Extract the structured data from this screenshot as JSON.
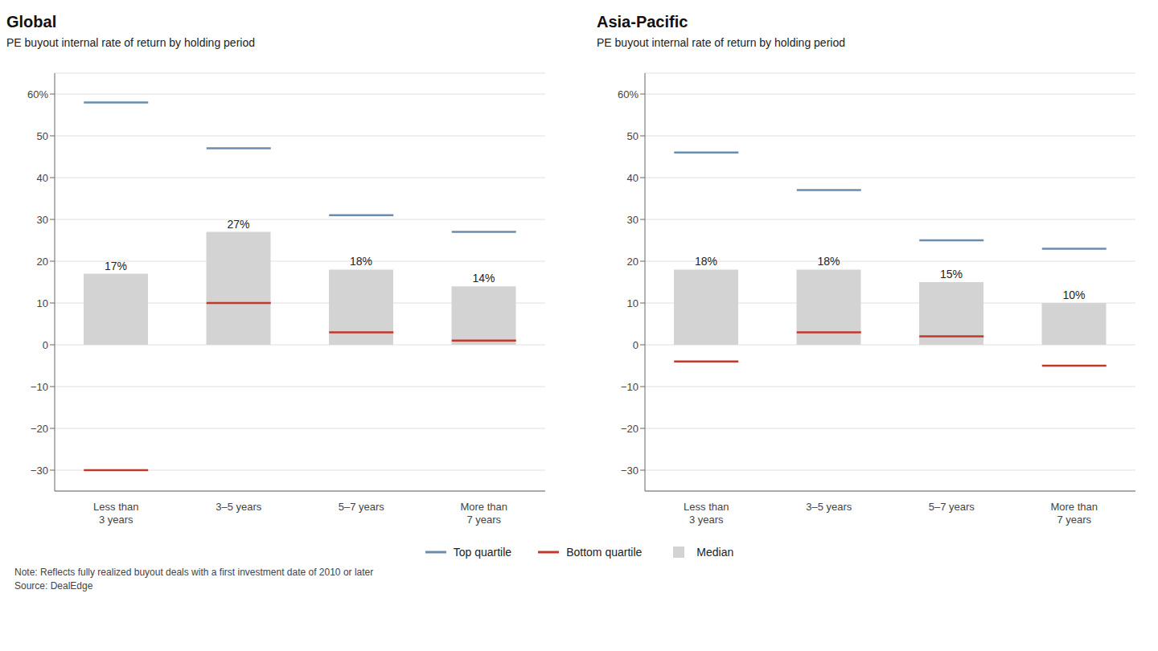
{
  "chart_data": [
    {
      "type": "bar",
      "title": "Global",
      "subtitle": "PE buyout internal rate of return by holding period",
      "categories": [
        "Less than\n3 years",
        "3–5 years",
        "5–7 years",
        "More than\n7 years"
      ],
      "series": [
        {
          "name": "Top quartile",
          "type": "marker",
          "marker": "hline",
          "color": "#6b8cae",
          "values": [
            58,
            47,
            31,
            27
          ]
        },
        {
          "name": "Bottom quartile",
          "type": "marker",
          "marker": "hline",
          "color": "#c0392b",
          "values": [
            -30,
            10,
            3,
            1
          ]
        },
        {
          "name": "Median",
          "type": "bar",
          "color": "#d3d3d3",
          "values": [
            17,
            27,
            18,
            14
          ],
          "value_labels": [
            "17%",
            "27%",
            "18%",
            "14%"
          ],
          "data_labels": true
        }
      ],
      "ylim": [
        -35,
        65
      ],
      "yticks": [
        {
          "value": -30,
          "label": "−30"
        },
        {
          "value": -20,
          "label": "−20"
        },
        {
          "value": -10,
          "label": "−10"
        },
        0,
        10,
        20,
        30,
        40,
        50,
        {
          "value": 60,
          "label": "60%"
        }
      ],
      "grid": true,
      "legend": "bottom"
    },
    {
      "type": "bar",
      "title": "Asia-Pacific",
      "subtitle": "PE buyout internal rate of return by holding period",
      "categories": [
        "Less than\n3 years",
        "3–5 years",
        "5–7 years",
        "More than\n7 years"
      ],
      "series": [
        {
          "name": "Top quartile",
          "type": "marker",
          "marker": "hline",
          "color": "#6b8cae",
          "values": [
            46,
            37,
            25,
            23
          ]
        },
        {
          "name": "Bottom quartile",
          "type": "marker",
          "marker": "hline",
          "color": "#c0392b",
          "values": [
            -4,
            3,
            2,
            -5
          ]
        },
        {
          "name": "Median",
          "type": "bar",
          "color": "#d3d3d3",
          "values": [
            18,
            18,
            15,
            10
          ],
          "value_labels": [
            "18%",
            "18%",
            "15%",
            "10%"
          ],
          "data_labels": true
        }
      ],
      "ylim": [
        -35,
        65
      ],
      "yticks": [
        {
          "value": -30,
          "label": "−30"
        },
        {
          "value": -20,
          "label": "−20"
        },
        {
          "value": -10,
          "label": "−10"
        },
        0,
        10,
        20,
        30,
        40,
        50,
        {
          "value": 60,
          "label": "60%"
        }
      ],
      "grid": true,
      "legend": "bottom"
    }
  ],
  "annotations": [
    "Note: Reflects fully realized buyout deals with a first investment date of 2010 or later",
    "Source: DealEdge"
  ]
}
